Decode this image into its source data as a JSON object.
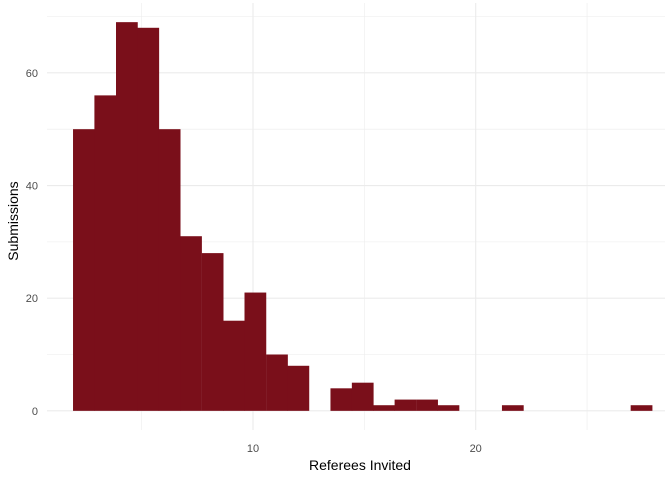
{
  "chart_data": {
    "type": "bar",
    "subtype": "histogram",
    "title": "",
    "xlabel": "Referees Invited",
    "ylabel": "Submissions",
    "bar_color": "#7a0f1a",
    "grid": true,
    "panel_background": "#ffffff",
    "gridline_color": "#ebebeb",
    "bin_width": 0.963,
    "bins": [
      {
        "x": 2.4,
        "value": 50
      },
      {
        "x": 3.36,
        "value": 56
      },
      {
        "x": 4.33,
        "value": 69
      },
      {
        "x": 5.29,
        "value": 68
      },
      {
        "x": 6.25,
        "value": 50
      },
      {
        "x": 7.21,
        "value": 31
      },
      {
        "x": 8.18,
        "value": 28
      },
      {
        "x": 9.14,
        "value": 16
      },
      {
        "x": 10.1,
        "value": 21
      },
      {
        "x": 11.07,
        "value": 10
      },
      {
        "x": 12.03,
        "value": 8
      },
      {
        "x": 12.99,
        "value": 0
      },
      {
        "x": 13.96,
        "value": 4
      },
      {
        "x": 14.92,
        "value": 5
      },
      {
        "x": 15.88,
        "value": 1
      },
      {
        "x": 16.84,
        "value": 2
      },
      {
        "x": 17.81,
        "value": 2
      },
      {
        "x": 18.77,
        "value": 1
      },
      {
        "x": 19.73,
        "value": 0
      },
      {
        "x": 20.7,
        "value": 0
      },
      {
        "x": 21.66,
        "value": 1
      },
      {
        "x": 22.62,
        "value": 0
      },
      {
        "x": 23.59,
        "value": 0
      },
      {
        "x": 24.55,
        "value": 0
      },
      {
        "x": 25.51,
        "value": 0
      },
      {
        "x": 26.48,
        "value": 0
      },
      {
        "x": 27.44,
        "value": 1
      }
    ],
    "xlim": [
      0.75,
      28.5
    ],
    "ylim": [
      -3.4,
      72.4
    ],
    "x_ticks": [
      10,
      20
    ],
    "x_minor_ticks": [
      5,
      15,
      25
    ],
    "y_ticks": [
      0,
      20,
      40,
      60
    ],
    "y_minor_ticks": [
      10,
      30,
      50,
      70
    ]
  }
}
